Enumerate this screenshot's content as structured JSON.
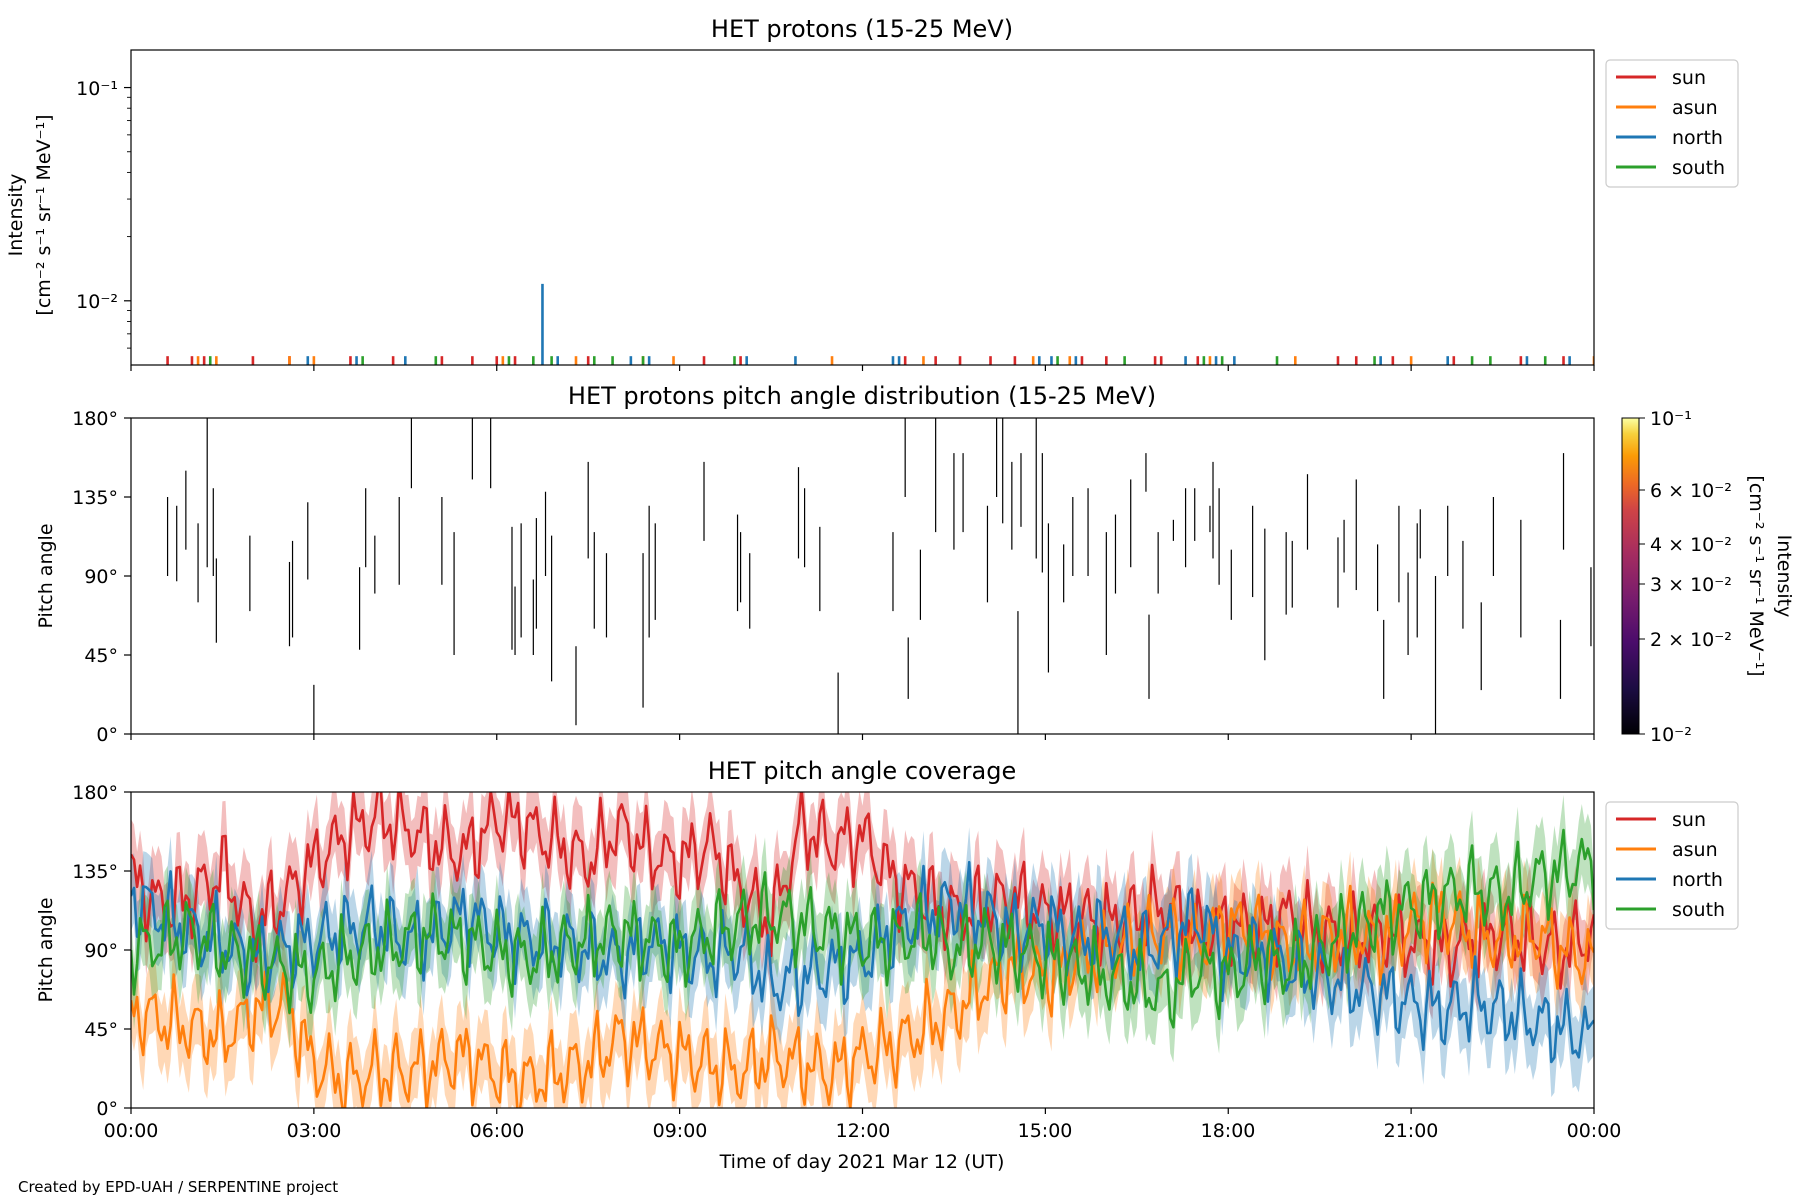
{
  "footer": "Created by EPD-UAH / SERPENTINE project",
  "colors": {
    "sun": "#d62728",
    "asun": "#ff7f0e",
    "north": "#1f77b4",
    "south": "#2ca02c"
  },
  "legend": [
    "sun",
    "asun",
    "north",
    "south"
  ],
  "time_ticks": [
    "00:00",
    "03:00",
    "06:00",
    "09:00",
    "12:00",
    "15:00",
    "18:00",
    "21:00",
    "00:00"
  ],
  "xlabel": "Time of day 2021 Mar 12 (UT)",
  "panels": {
    "intensity": {
      "title": "HET protons (15-25 MeV)",
      "ylabel_line1": "Intensity",
      "ylabel_line2": "[cm⁻² s⁻¹ sr⁻¹ MeV⁻¹]",
      "yticks": [
        "10⁻¹",
        "10⁻²"
      ]
    },
    "pad": {
      "title": "HET protons pitch angle distribution (15-25 MeV)",
      "ylabel": "Pitch angle",
      "yticks": [
        "180°",
        "135°",
        "90°",
        "45°",
        "0°"
      ],
      "colorbar_label_line1": "Intensity",
      "colorbar_label_line2": "[cm⁻² s⁻¹ sr⁻¹ MeV⁻¹]",
      "colorbar_ticks": [
        "10⁻¹",
        "6 × 10⁻²",
        "4 × 10⁻²",
        "3 × 10⁻²",
        "2 × 10⁻²",
        "10⁻²"
      ]
    },
    "coverage": {
      "title": "HET pitch angle coverage",
      "ylabel": "Pitch angle",
      "yticks": [
        "180°",
        "135°",
        "90°",
        "45°",
        "0°"
      ]
    }
  },
  "chart_data": [
    {
      "type": "bar",
      "title": "HET protons (15-25 MeV)",
      "ylabel": "Intensity [cm⁻² s⁻¹ sr⁻¹ MeV⁻¹]",
      "yscale": "log",
      "ylim": [
        0.005,
        0.15
      ],
      "xlim_hours": [
        0,
        24
      ],
      "baseline": 0.0055,
      "legend_placement": "upper-right-outside",
      "series": [
        {
          "name": "sun",
          "hours": [
            0.6,
            1.0,
            1.2,
            2.0,
            2.6,
            3.6,
            4.3,
            5.1,
            5.6,
            6.0,
            6.3,
            7.5,
            9.4,
            10.0,
            12.7,
            13.2,
            13.6,
            14.1,
            14.5,
            15.6,
            16.0,
            16.8,
            16.9,
            17.5,
            19.8,
            20.1,
            20.7,
            21.7,
            22.8,
            23.5
          ]
        },
        {
          "name": "asun",
          "hours": [
            1.1,
            1.4,
            2.6,
            3.0,
            6.1,
            7.3,
            8.4,
            8.9,
            11.5,
            13.0,
            14.8,
            15.4,
            17.7,
            19.1,
            21.0,
            24.0
          ]
        },
        {
          "name": "north",
          "hours": [
            2.9,
            3.7,
            4.5,
            6.75,
            7.0,
            8.2,
            8.5,
            10.1,
            10.9,
            12.5,
            12.6,
            14.9,
            15.1,
            15.5,
            17.3,
            17.8,
            18.1,
            20.5,
            21.6,
            22.9,
            23.6
          ],
          "peak": {
            "hour": 6.75,
            "value": 0.012
          }
        },
        {
          "name": "south",
          "hours": [
            1.3,
            3.8,
            5.0,
            6.2,
            6.6,
            6.9,
            7.6,
            7.9,
            8.4,
            9.9,
            15.2,
            16.3,
            17.6,
            17.9,
            18.8,
            20.4,
            22.0,
            22.3,
            23.2
          ]
        }
      ]
    },
    {
      "type": "heatmap",
      "title": "HET protons pitch angle distribution (15-25 MeV)",
      "ylabel": "Pitch angle",
      "ylim": [
        0,
        180
      ],
      "xlim_hours": [
        0,
        24
      ],
      "colorbar": {
        "label": "Intensity [cm⁻² s⁻¹ sr⁻¹ MeV⁻¹]",
        "scale": "log",
        "range": [
          0.01,
          0.1
        ],
        "colormap": "inferno"
      },
      "segments": [
        [
          0.6,
          90,
          135
        ],
        [
          0.75,
          87,
          130
        ],
        [
          0.9,
          105,
          150
        ],
        [
          1.1,
          75,
          120
        ],
        [
          1.25,
          95,
          180
        ],
        [
          1.35,
          90,
          140
        ],
        [
          1.4,
          52,
          100
        ],
        [
          1.95,
          70,
          113
        ],
        [
          2.6,
          50,
          98
        ],
        [
          2.65,
          55,
          110
        ],
        [
          2.9,
          88,
          132
        ],
        [
          3.0,
          0,
          28
        ],
        [
          3.75,
          48,
          95
        ],
        [
          3.85,
          95,
          140
        ],
        [
          4.0,
          80,
          113
        ],
        [
          4.4,
          85,
          135
        ],
        [
          4.6,
          140,
          180
        ],
        [
          5.1,
          85,
          135
        ],
        [
          5.3,
          45,
          115
        ],
        [
          5.6,
          145,
          180
        ],
        [
          5.9,
          140,
          180
        ],
        [
          6.25,
          48,
          118
        ],
        [
          6.3,
          45,
          84
        ],
        [
          6.4,
          55,
          120
        ],
        [
          6.6,
          45,
          88
        ],
        [
          6.65,
          60,
          123
        ],
        [
          6.8,
          90,
          138
        ],
        [
          6.9,
          30,
          113
        ],
        [
          7.3,
          5,
          50
        ],
        [
          7.5,
          100,
          155
        ],
        [
          7.6,
          60,
          115
        ],
        [
          7.8,
          55,
          103
        ],
        [
          8.4,
          15,
          103
        ],
        [
          8.5,
          55,
          130
        ],
        [
          8.6,
          65,
          120
        ],
        [
          9.4,
          110,
          155
        ],
        [
          9.95,
          70,
          125
        ],
        [
          10.0,
          75,
          115
        ],
        [
          10.15,
          60,
          103
        ],
        [
          10.95,
          100,
          152
        ],
        [
          11.05,
          95,
          140
        ],
        [
          11.3,
          70,
          118
        ],
        [
          11.6,
          0,
          35
        ],
        [
          12.5,
          70,
          115
        ],
        [
          12.7,
          135,
          180
        ],
        [
          12.75,
          20,
          55
        ],
        [
          12.95,
          65,
          105
        ],
        [
          13.2,
          115,
          180
        ],
        [
          13.5,
          105,
          160
        ],
        [
          13.65,
          115,
          160
        ],
        [
          14.05,
          75,
          130
        ],
        [
          14.2,
          135,
          180
        ],
        [
          14.3,
          120,
          180
        ],
        [
          14.45,
          105,
          155
        ],
        [
          14.55,
          0,
          70
        ],
        [
          14.6,
          118,
          160
        ],
        [
          14.85,
          100,
          180
        ],
        [
          14.95,
          92,
          160
        ],
        [
          15.05,
          35,
          120
        ],
        [
          15.3,
          75,
          108
        ],
        [
          15.45,
          90,
          135
        ],
        [
          15.7,
          90,
          140
        ],
        [
          16.0,
          45,
          115
        ],
        [
          16.15,
          80,
          125
        ],
        [
          16.4,
          95,
          145
        ],
        [
          16.65,
          138,
          160
        ],
        [
          16.7,
          20,
          68
        ],
        [
          16.85,
          80,
          115
        ],
        [
          17.1,
          110,
          122
        ],
        [
          17.3,
          95,
          140
        ],
        [
          17.45,
          110,
          140
        ],
        [
          17.7,
          115,
          130
        ],
        [
          17.75,
          100,
          155
        ],
        [
          17.85,
          85,
          140
        ],
        [
          18.05,
          65,
          105
        ],
        [
          18.4,
          78,
          130
        ],
        [
          18.6,
          42,
          117
        ],
        [
          18.95,
          68,
          115
        ],
        [
          19.05,
          72,
          110
        ],
        [
          19.3,
          105,
          148
        ],
        [
          19.8,
          72,
          112
        ],
        [
          19.9,
          92,
          122
        ],
        [
          20.1,
          82,
          145
        ],
        [
          20.45,
          70,
          108
        ],
        [
          20.55,
          20,
          65
        ],
        [
          20.8,
          75,
          130
        ],
        [
          20.95,
          45,
          92
        ],
        [
          21.1,
          55,
          120
        ],
        [
          21.15,
          100,
          128
        ],
        [
          21.4,
          0,
          90
        ],
        [
          21.6,
          90,
          130
        ],
        [
          21.85,
          60,
          110
        ],
        [
          22.15,
          25,
          75
        ],
        [
          22.35,
          90,
          135
        ],
        [
          22.8,
          55,
          122
        ],
        [
          23.45,
          20,
          65
        ],
        [
          23.5,
          105,
          160
        ],
        [
          23.95,
          50,
          95
        ]
      ]
    },
    {
      "type": "line",
      "title": "HET pitch angle coverage",
      "ylabel": "Pitch angle",
      "ylim": [
        0,
        180
      ],
      "xlim_hours": [
        0,
        24
      ],
      "xlabel": "Time of day 2021 Mar 12 (UT)",
      "legend_placement": "upper-right-outside",
      "band_half_width_deg": 20,
      "sample_step_hours": 0.5,
      "series": [
        {
          "name": "sun",
          "values": [
            130,
            115,
            120,
            135,
            105,
            118,
            140,
            155,
            165,
            160,
            150,
            145,
            165,
            160,
            150,
            140,
            160,
            145,
            140,
            150,
            125,
            105,
            160,
            150,
            155,
            130,
            120,
            110,
            115,
            120,
            110,
            110,
            105,
            110,
            115,
            100,
            105,
            100,
            110,
            100,
            95,
            100,
            95,
            90,
            95,
            100,
            95,
            90,
            100
          ]
        },
        {
          "name": "asun",
          "values": [
            55,
            50,
            45,
            40,
            55,
            60,
            25,
            15,
            20,
            20,
            25,
            30,
            20,
            15,
            20,
            25,
            40,
            35,
            30,
            25,
            20,
            30,
            25,
            20,
            30,
            35,
            45,
            55,
            70,
            80,
            75,
            85,
            90,
            95,
            100,
            95,
            105,
            100,
            90,
            95,
            100,
            95,
            105,
            110,
            100,
            95,
            100,
            90,
            85
          ]
        },
        {
          "name": "north",
          "values": [
            120,
            110,
            100,
            95,
            85,
            90,
            95,
            100,
            105,
            95,
            100,
            110,
            100,
            95,
            95,
            90,
            85,
            95,
            90,
            85,
            90,
            70,
            75,
            80,
            85,
            100,
            110,
            115,
            110,
            100,
            105,
            95,
            100,
            90,
            95,
            110,
            85,
            90,
            80,
            75,
            70,
            65,
            60,
            55,
            60,
            55,
            50,
            45,
            40
          ]
        },
        {
          "name": "south",
          "values": [
            90,
            95,
            100,
            90,
            85,
            80,
            75,
            85,
            90,
            95,
            100,
            95,
            90,
            85,
            90,
            95,
            100,
            95,
            90,
            100,
            105,
            110,
            105,
            100,
            95,
            95,
            100,
            90,
            95,
            90,
            85,
            80,
            75,
            70,
            65,
            80,
            75,
            85,
            80,
            90,
            100,
            110,
            115,
            120,
            125,
            120,
            130,
            135,
            140
          ]
        }
      ]
    }
  ]
}
